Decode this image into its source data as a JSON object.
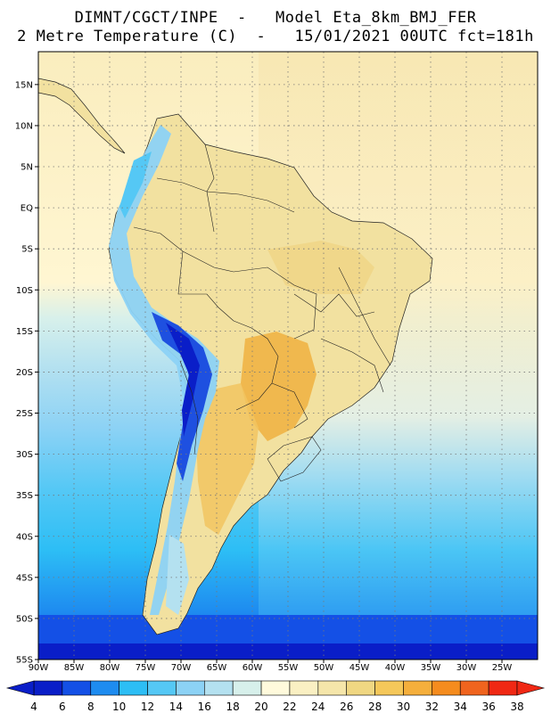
{
  "title": {
    "line1": "DIMNT/CGCT/INPE  -   Model Eta_8km_BMJ_FER",
    "line2": "2 Metre Temperature (C)  -   15/01/2021 00UTC fct=181h"
  },
  "axes": {
    "lat_labels": [
      "15N",
      "10N",
      "5N",
      "EQ",
      "5S",
      "10S",
      "15S",
      "20S",
      "25S",
      "30S",
      "35S",
      "40S",
      "45S",
      "50S",
      "55S"
    ],
    "lat_values": [
      15,
      10,
      5,
      0,
      -5,
      -10,
      -15,
      -20,
      -25,
      -30,
      -35,
      -40,
      -45,
      -50,
      -55
    ],
    "lon_labels": [
      "90W",
      "85W",
      "80W",
      "75W",
      "70W",
      "65W",
      "60W",
      "55W",
      "50W",
      "45W",
      "40W",
      "35W",
      "30W",
      "25W"
    ],
    "lon_values": [
      -90,
      -85,
      -80,
      -75,
      -70,
      -65,
      -60,
      -55,
      -50,
      -45,
      -40,
      -35,
      -30,
      -25
    ],
    "lat_range": [
      -55,
      19
    ],
    "lon_range": [
      -90,
      -20
    ]
  },
  "colorbar": {
    "labels": [
      "4",
      "6",
      "8",
      "10",
      "12",
      "14",
      "16",
      "18",
      "20",
      "22",
      "24",
      "26",
      "28",
      "30",
      "32",
      "34",
      "36",
      "38"
    ],
    "colors": [
      "#0a1ec8",
      "#1450e6",
      "#1e8cf0",
      "#2dbef5",
      "#55c8f5",
      "#8cd2f5",
      "#b4e1f0",
      "#d7f0eb",
      "#fffadc",
      "#faf0c3",
      "#f5e6aa",
      "#f0d782",
      "#f5c85a",
      "#f5af3c",
      "#f58c1e",
      "#f0641e",
      "#f02814"
    ]
  }
}
